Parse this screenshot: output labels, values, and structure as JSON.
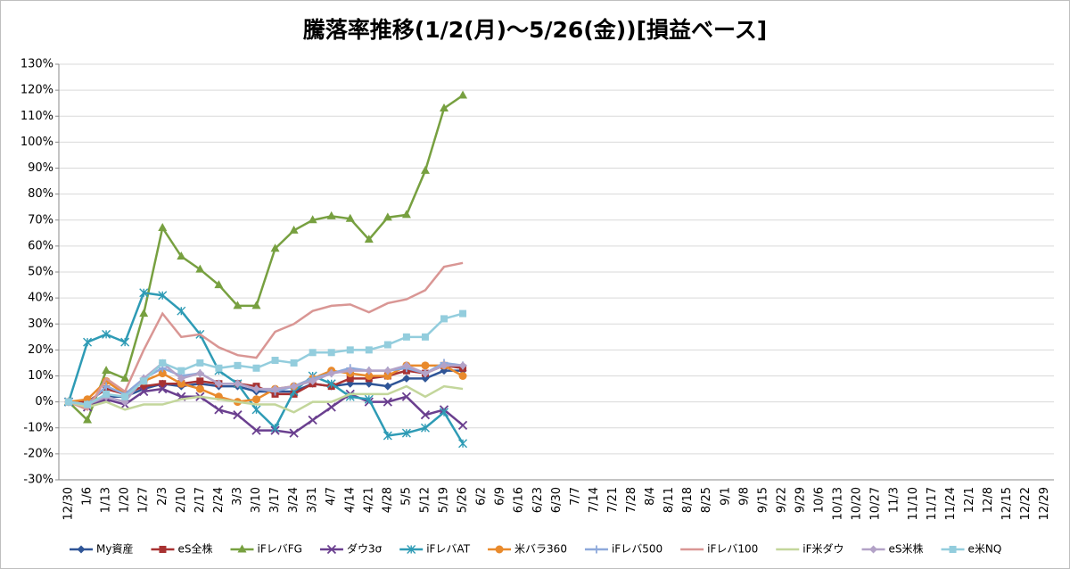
{
  "chart_data": {
    "type": "line",
    "title": "騰落率推移(1/2(月)〜5/26(金))[損益ベース]",
    "categories": [
      "12/30",
      "1/6",
      "1/13",
      "1/20",
      "1/27",
      "2/3",
      "2/10",
      "2/17",
      "2/24",
      "3/3",
      "3/10",
      "3/17",
      "3/24",
      "3/31",
      "4/7",
      "4/14",
      "4/21",
      "4/28",
      "5/5",
      "5/12",
      "5/19",
      "5/26",
      "6/2",
      "6/9",
      "6/16",
      "6/23",
      "6/30",
      "7/7",
      "7/14",
      "7/21",
      "7/28",
      "8/4",
      "8/11",
      "8/18",
      "8/25",
      "9/1",
      "9/8",
      "9/15",
      "9/22",
      "9/29",
      "10/6",
      "10/13",
      "10/20",
      "10/27",
      "11/3",
      "11/10",
      "11/17",
      "11/24",
      "12/1",
      "12/8",
      "12/15",
      "12/22",
      "12/29"
    ],
    "ylim": [
      -30,
      130
    ],
    "yticks": [
      {
        "value": -30,
        "label": "-30%"
      },
      {
        "value": -20,
        "label": "-20%"
      },
      {
        "value": -10,
        "label": "-10%"
      },
      {
        "value": 0,
        "label": "0%"
      },
      {
        "value": 10,
        "label": "10%"
      },
      {
        "value": 20,
        "label": "20%"
      },
      {
        "value": 30,
        "label": "30%"
      },
      {
        "value": 40,
        "label": "40%"
      },
      {
        "value": 50,
        "label": "50%"
      },
      {
        "value": 60,
        "label": "60%"
      },
      {
        "value": 70,
        "label": "70%"
      },
      {
        "value": 80,
        "label": "80%"
      },
      {
        "value": 90,
        "label": "90%"
      },
      {
        "value": 100,
        "label": "100%"
      },
      {
        "value": 110,
        "label": "110%"
      },
      {
        "value": 120,
        "label": "120%"
      },
      {
        "value": 130,
        "label": "130%"
      }
    ],
    "grid": true,
    "legend": "bottom",
    "series": [
      {
        "name": "My資産",
        "color": "#2f5597",
        "marker": "diamond",
        "values": [
          0,
          -1,
          2,
          2,
          5,
          7,
          6,
          7,
          6,
          6,
          4,
          4,
          4,
          7,
          6,
          7,
          7,
          6,
          9,
          9,
          12,
          12,
          null,
          null,
          null,
          null,
          null,
          null,
          null,
          null,
          null,
          null,
          null,
          null,
          null,
          null,
          null,
          null,
          null,
          null,
          null,
          null,
          null,
          null,
          null,
          null,
          null,
          null,
          null,
          null,
          null,
          null,
          null
        ]
      },
      {
        "name": "eS全株",
        "color": "#a83232",
        "marker": "square",
        "values": [
          0,
          0,
          5,
          3,
          6,
          7,
          7,
          8,
          7,
          7,
          6,
          3,
          3,
          7,
          6,
          9,
          9,
          10,
          12,
          11,
          14,
          13,
          null,
          null,
          null,
          null,
          null,
          null,
          null,
          null,
          null,
          null,
          null,
          null,
          null,
          null,
          null,
          null,
          null,
          null,
          null,
          null,
          null,
          null,
          null,
          null,
          null,
          null,
          null,
          null,
          null,
          null,
          null
        ]
      },
      {
        "name": "iFレバFG",
        "color": "#77a040",
        "marker": "triangle",
        "values": [
          0,
          -7,
          12,
          9,
          34,
          67,
          56,
          51,
          45,
          37,
          37,
          59,
          66,
          70,
          71.5,
          70.5,
          62.5,
          71,
          72,
          89,
          113,
          118,
          null,
          null,
          null,
          null,
          null,
          null,
          null,
          null,
          null,
          null,
          null,
          null,
          null,
          null,
          null,
          null,
          null,
          null,
          null,
          null,
          null,
          null,
          null,
          null,
          null,
          null,
          null,
          null,
          null,
          null,
          null
        ]
      },
      {
        "name": "ダウ3σ",
        "color": "#6a3f8f",
        "marker": "x",
        "values": [
          0,
          -2,
          1,
          -1,
          4,
          5,
          2,
          2,
          -3,
          -5,
          -11,
          -11,
          -12,
          -7,
          -2,
          3,
          0,
          0,
          2,
          -5,
          -3,
          -9,
          null,
          null,
          null,
          null,
          null,
          null,
          null,
          null,
          null,
          null,
          null,
          null,
          null,
          null,
          null,
          null,
          null,
          null,
          null,
          null,
          null,
          null,
          null,
          null,
          null,
          null,
          null,
          null,
          null,
          null,
          null
        ]
      },
      {
        "name": "iFレバAT",
        "color": "#2e9bb5",
        "marker": "star",
        "values": [
          0,
          23,
          26,
          23,
          42,
          41,
          35,
          26,
          12,
          7,
          -3,
          -10,
          4,
          10,
          7,
          2,
          1,
          -13,
          -12,
          -10,
          -4,
          -16,
          null,
          null,
          null,
          null,
          null,
          null,
          null,
          null,
          null,
          null,
          null,
          null,
          null,
          null,
          null,
          null,
          null,
          null,
          null,
          null,
          null,
          null,
          null,
          null,
          null,
          null,
          null,
          null,
          null,
          null,
          null
        ]
      },
      {
        "name": "米バラ360",
        "color": "#e98a2c",
        "marker": "circle",
        "values": [
          0,
          1,
          8,
          3,
          8,
          11,
          7,
          5,
          2,
          0,
          1,
          5,
          6,
          9,
          12,
          11,
          10,
          10,
          14,
          14,
          14,
          10,
          null,
          null,
          null,
          null,
          null,
          null,
          null,
          null,
          null,
          null,
          null,
          null,
          null,
          null,
          null,
          null,
          null,
          null,
          null,
          null,
          null,
          null,
          null,
          null,
          null,
          null,
          null,
          null,
          null,
          null,
          null
        ]
      },
      {
        "name": "iFレバ500",
        "color": "#8ea9db",
        "marker": "plus",
        "values": [
          0,
          -1,
          6,
          3,
          9,
          13,
          10,
          11,
          7,
          7,
          5,
          4,
          6,
          9,
          11,
          13,
          12,
          12,
          13,
          11,
          15,
          14,
          null,
          null,
          null,
          null,
          null,
          null,
          null,
          null,
          null,
          null,
          null,
          null,
          null,
          null,
          null,
          null,
          null,
          null,
          null,
          null,
          null,
          null,
          null,
          null,
          null,
          null,
          null,
          null,
          null,
          null,
          null
        ]
      },
      {
        "name": "iFレバ100",
        "color": "#d99694",
        "marker": "none",
        "values": [
          0,
          -3,
          9,
          4,
          20,
          34,
          25,
          26,
          21,
          18,
          17,
          27,
          30,
          35,
          37,
          37.5,
          34.5,
          38,
          39.5,
          43,
          52,
          53.5,
          null,
          null,
          null,
          null,
          null,
          null,
          null,
          null,
          null,
          null,
          null,
          null,
          null,
          null,
          null,
          null,
          null,
          null,
          null,
          null,
          null,
          null,
          null,
          null,
          null,
          null,
          null,
          null,
          null,
          null,
          null
        ]
      },
      {
        "name": "iF米ダウ",
        "color": "#c3d69b",
        "marker": "none",
        "values": [
          0,
          -2,
          0,
          -3,
          -1,
          -1,
          1,
          2,
          1,
          0,
          -1,
          -1,
          -4,
          0,
          0,
          3,
          3,
          3,
          6,
          2,
          6,
          5,
          null,
          null,
          null,
          null,
          null,
          null,
          null,
          null,
          null,
          null,
          null,
          null,
          null,
          null,
          null,
          null,
          null,
          null,
          null,
          null,
          null,
          null,
          null,
          null,
          null,
          null,
          null,
          null,
          null,
          null,
          null
        ]
      },
      {
        "name": "eS米株",
        "color": "#b3a2c7",
        "marker": "diamond",
        "values": [
          0,
          -1,
          2,
          0,
          9,
          15,
          9,
          11,
          7,
          7,
          5,
          5,
          6,
          8,
          11,
          12,
          12,
          12,
          14,
          11,
          14,
          14,
          null,
          null,
          null,
          null,
          null,
          null,
          null,
          null,
          null,
          null,
          null,
          null,
          null,
          null,
          null,
          null,
          null,
          null,
          null,
          null,
          null,
          null,
          null,
          null,
          null,
          null,
          null,
          null,
          null,
          null,
          null
        ]
      },
      {
        "name": "e米NQ",
        "color": "#93cddd",
        "marker": "square",
        "values": [
          0,
          -1,
          3,
          2,
          8,
          15,
          12,
          15,
          13,
          14,
          13,
          16,
          15,
          19,
          19,
          20,
          20,
          22,
          25,
          25,
          32,
          34,
          null,
          null,
          null,
          null,
          null,
          null,
          null,
          null,
          null,
          null,
          null,
          null,
          null,
          null,
          null,
          null,
          null,
          null,
          null,
          null,
          null,
          null,
          null,
          null,
          null,
          null,
          null,
          null,
          null,
          null,
          null
        ]
      }
    ]
  }
}
